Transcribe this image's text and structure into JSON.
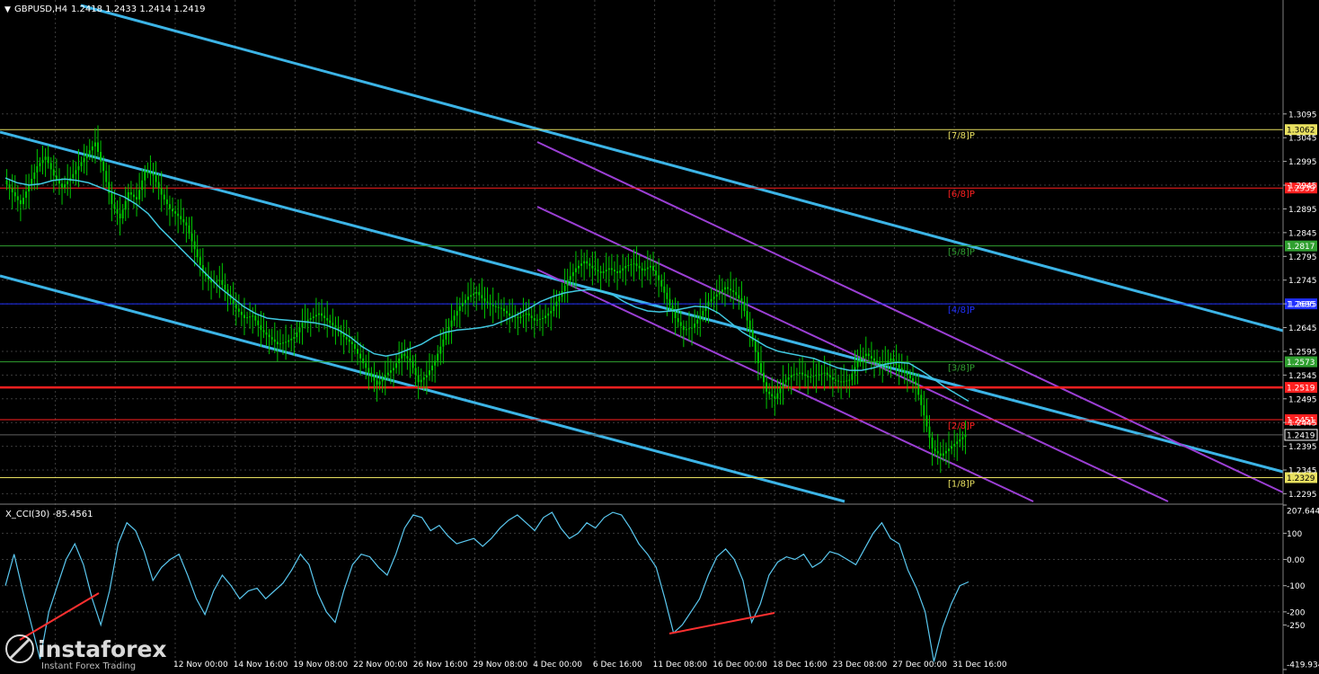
{
  "header": {
    "symbol": "GBPUSD,H4",
    "ohlc": "1.2418 1.2433 1.2414 1.2419"
  },
  "indicator": {
    "label": "X_CCI(30) -85.4561"
  },
  "watermark": {
    "brand": "instaforex",
    "tagline": "Instant Forex Trading"
  },
  "colors": {
    "background": "#000000",
    "grid": "#3c3c3c",
    "candle": "#00c800",
    "ma": "#40c8e0",
    "channel_blue": "#3cb4e6",
    "channel_purple": "#9b3fd4",
    "red": "#ff2020",
    "blue": "#2030ff",
    "yellow": "#e8e060",
    "green": "#30a030",
    "cci": "#5ac8f0",
    "divergence": "#ff3030"
  },
  "chart_data": {
    "type": "line",
    "price_axis": {
      "range": [
        1.2275,
        1.3335
      ],
      "ticks": [
        "1.3095",
        "1.3045",
        "1.2995",
        "1.2945",
        "1.2895",
        "1.2845",
        "1.2795",
        "1.2745",
        "1.2695",
        "1.2645",
        "1.2595",
        "1.2545",
        "1.2495",
        "1.2445",
        "1.2395",
        "1.2345",
        "1.2295"
      ]
    },
    "x_ticks": [
      "12 Nov 00:00",
      "14 Nov 16:00",
      "19 Nov 08:00",
      "22 Nov 00:00",
      "26 Nov 16:00",
      "29 Nov 08:00",
      "4 Dec 00:00",
      "6 Dec 16:00",
      "11 Dec 08:00",
      "16 Dec 00:00",
      "18 Dec 16:00",
      "23 Dec 08:00",
      "27 Dec 00:00",
      "31 Dec 16:00"
    ],
    "price_levels": [
      {
        "price": 1.3062,
        "label": "1.3062",
        "color": "yellow",
        "tag": "[7/8]P"
      },
      {
        "price": 1.2939,
        "label": "1.2939",
        "color": "red",
        "tag": "[6/8]P"
      },
      {
        "price": 1.2817,
        "label": "1.2817",
        "color": "green",
        "tag": "[5/8]P"
      },
      {
        "price": 1.2695,
        "label": "1.2695",
        "color": "blue",
        "tag": "[4/8]P"
      },
      {
        "price": 1.2573,
        "label": "1.2573",
        "color": "green",
        "tag": "[3/8]P"
      },
      {
        "price": 1.2519,
        "label": "1.2519",
        "color": "red",
        "tag": ""
      },
      {
        "price": 1.2451,
        "label": "1.2451",
        "color": "red",
        "tag": "[2/8]P"
      },
      {
        "price": 1.2329,
        "label": "1.2329",
        "color": "yellow",
        "tag": "[1/8]P"
      }
    ],
    "current_price": "1.2419",
    "price_series": [
      1.2955,
      1.293,
      1.2905,
      1.2945,
      1.2985,
      1.3005,
      1.2965,
      1.294,
      1.296,
      1.2985,
      1.301,
      1.3035,
      1.2975,
      1.2905,
      1.2875,
      1.293,
      1.2915,
      1.2975,
      1.2965,
      1.2925,
      1.2895,
      1.288,
      1.286,
      1.281,
      1.276,
      1.274,
      1.2745,
      1.2715,
      1.2685,
      1.2665,
      1.267,
      1.264,
      1.2625,
      1.261,
      1.2615,
      1.2625,
      1.2655,
      1.2665,
      1.2675,
      1.266,
      1.2645,
      1.2625,
      1.261,
      1.258,
      1.255,
      1.2525,
      1.2545,
      1.256,
      1.259,
      1.2575,
      1.253,
      1.2545,
      1.2575,
      1.262,
      1.266,
      1.269,
      1.271,
      1.272,
      1.27,
      1.269,
      1.2685,
      1.267,
      1.2665,
      1.2675,
      1.266,
      1.2665,
      1.268,
      1.271,
      1.2745,
      1.277,
      1.2785,
      1.277,
      1.276,
      1.277,
      1.276,
      1.2775,
      1.278,
      1.2765,
      1.2775,
      1.2745,
      1.2705,
      1.2665,
      1.264,
      1.2645,
      1.267,
      1.27,
      1.2715,
      1.273,
      1.272,
      1.27,
      1.264,
      1.257,
      1.251,
      1.2495,
      1.253,
      1.2545,
      1.255,
      1.254,
      1.2545,
      1.255,
      1.2535,
      1.253,
      1.2535,
      1.2575,
      1.259,
      1.2575,
      1.2565,
      1.258,
      1.256,
      1.2545,
      1.2525,
      1.246,
      1.239,
      1.2375,
      1.239,
      1.2405,
      1.2419
    ],
    "ma_series": [
      1.296,
      1.295,
      1.2945,
      1.2948,
      1.2955,
      1.2958,
      1.2955,
      1.295,
      1.294,
      1.293,
      1.292,
      1.2905,
      1.2885,
      1.2855,
      1.283,
      1.2805,
      1.278,
      1.2755,
      1.273,
      1.271,
      1.269,
      1.2675,
      1.2665,
      1.2662,
      1.266,
      1.2658,
      1.2655,
      1.265,
      1.264,
      1.2625,
      1.2605,
      1.259,
      1.2585,
      1.259,
      1.26,
      1.261,
      1.2625,
      1.2635,
      1.264,
      1.2642,
      1.2645,
      1.265,
      1.266,
      1.2672,
      1.2685,
      1.27,
      1.271,
      1.2718,
      1.2722,
      1.2725,
      1.2722,
      1.2715,
      1.27,
      1.2688,
      1.268,
      1.2678,
      1.268,
      1.2685,
      1.269,
      1.2688,
      1.2675,
      1.2655,
      1.2635,
      1.262,
      1.2605,
      1.2595,
      1.259,
      1.2585,
      1.258,
      1.257,
      1.256,
      1.2555,
      1.2555,
      1.256,
      1.2568,
      1.2572,
      1.257,
      1.2555,
      1.2538,
      1.252,
      1.2505,
      1.249
    ],
    "cci": {
      "label": "X_CCI(30) -85.4561",
      "range": [
        -419.934,
        207.6441
      ],
      "ticks": [
        "207.6441",
        "100",
        "0.00",
        "-100",
        "-200",
        "-250",
        "-419.934"
      ],
      "series": [
        -100,
        20,
        -120,
        -250,
        -380,
        -200,
        -100,
        0,
        60,
        -20,
        -150,
        -250,
        -120,
        60,
        140,
        110,
        30,
        -80,
        -30,
        0,
        20,
        -60,
        -150,
        -210,
        -120,
        -60,
        -100,
        -150,
        -120,
        -110,
        -150,
        -120,
        -90,
        -40,
        20,
        -20,
        -130,
        -200,
        -240,
        -120,
        -20,
        20,
        10,
        -30,
        -60,
        20,
        120,
        170,
        160,
        110,
        130,
        90,
        60,
        70,
        80,
        50,
        80,
        120,
        150,
        170,
        140,
        110,
        160,
        180,
        120,
        80,
        100,
        140,
        120,
        160,
        180,
        170,
        120,
        60,
        20,
        -30,
        -150,
        -280,
        -250,
        -200,
        -150,
        -60,
        10,
        40,
        0,
        -80,
        -240,
        -170,
        -60,
        -10,
        10,
        0,
        20,
        -30,
        -10,
        30,
        20,
        0,
        -20,
        40,
        100,
        140,
        80,
        60,
        -40,
        -110,
        -200,
        -390,
        -260,
        -170,
        -100,
        -85.4561
      ]
    }
  }
}
